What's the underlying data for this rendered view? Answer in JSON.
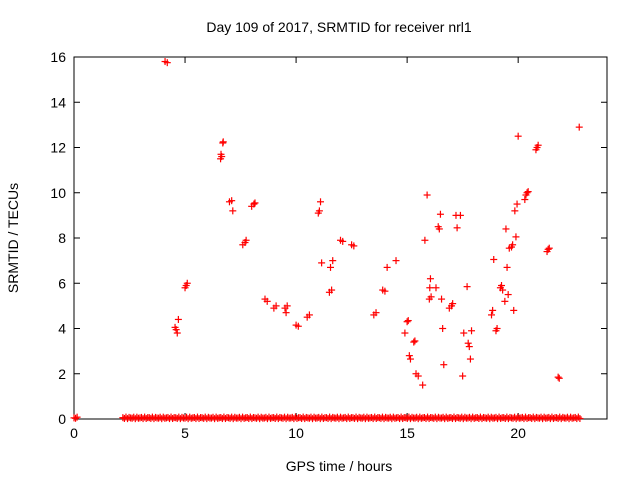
{
  "chart_data": {
    "type": "scatter",
    "title": "Day 109 of 2017, SRMTID for receiver nrl1",
    "xlabel": "GPS time / hours",
    "ylabel": "SRMTID / TECUs",
    "xlim": [
      0,
      24
    ],
    "ylim": [
      0,
      16
    ],
    "xticks": [
      0,
      5,
      10,
      15,
      20
    ],
    "xtick_labels": [
      "0",
      "5",
      "10",
      "15",
      "20"
    ],
    "yticks": [
      0,
      2,
      4,
      6,
      8,
      10,
      12,
      14,
      16
    ],
    "ytick_labels": [
      "0",
      "2",
      "4",
      "6",
      "8",
      "10",
      "12",
      "14",
      "16"
    ],
    "marker": "+",
    "color": "#ff0000",
    "baseline": {
      "y": 0.05,
      "segments": [
        [
          0,
          0.15
        ],
        [
          2.2,
          22.8
        ]
      ]
    },
    "series": [
      {
        "name": "SRMTID",
        "points": [
          [
            4.1,
            15.8
          ],
          [
            4.2,
            15.75
          ],
          [
            4.55,
            4.05
          ],
          [
            4.6,
            3.95
          ],
          [
            4.65,
            3.8
          ],
          [
            4.7,
            4.4
          ],
          [
            5.0,
            5.8
          ],
          [
            5.05,
            5.9
          ],
          [
            5.1,
            6.0
          ],
          [
            6.6,
            11.5
          ],
          [
            6.62,
            11.7
          ],
          [
            6.65,
            11.6
          ],
          [
            6.7,
            12.2
          ],
          [
            6.72,
            12.25
          ],
          [
            7.0,
            9.6
          ],
          [
            7.1,
            9.65
          ],
          [
            7.15,
            9.2
          ],
          [
            7.6,
            7.7
          ],
          [
            7.7,
            7.8
          ],
          [
            7.75,
            7.9
          ],
          [
            8.0,
            9.4
          ],
          [
            8.1,
            9.5
          ],
          [
            8.15,
            9.55
          ],
          [
            8.6,
            5.3
          ],
          [
            8.7,
            5.2
          ],
          [
            9.0,
            4.9
          ],
          [
            9.1,
            5.0
          ],
          [
            9.5,
            4.9
          ],
          [
            9.6,
            5.0
          ],
          [
            9.55,
            4.7
          ],
          [
            10.0,
            4.15
          ],
          [
            10.1,
            4.1
          ],
          [
            10.5,
            4.5
          ],
          [
            10.6,
            4.6
          ],
          [
            11.0,
            9.1
          ],
          [
            11.05,
            9.2
          ],
          [
            11.1,
            9.6
          ],
          [
            11.15,
            6.9
          ],
          [
            11.5,
            5.6
          ],
          [
            11.6,
            5.7
          ],
          [
            11.55,
            6.7
          ],
          [
            11.65,
            7.0
          ],
          [
            12.0,
            7.9
          ],
          [
            12.1,
            7.85
          ],
          [
            12.5,
            7.7
          ],
          [
            12.6,
            7.65
          ],
          [
            13.5,
            4.6
          ],
          [
            13.6,
            4.7
          ],
          [
            13.9,
            5.7
          ],
          [
            14.0,
            5.65
          ],
          [
            14.1,
            6.7
          ],
          [
            14.5,
            7.0
          ],
          [
            14.9,
            3.8
          ],
          [
            15.0,
            4.3
          ],
          [
            15.05,
            4.35
          ],
          [
            15.1,
            2.8
          ],
          [
            15.15,
            2.65
          ],
          [
            15.3,
            3.4
          ],
          [
            15.35,
            3.45
          ],
          [
            15.4,
            2.0
          ],
          [
            15.5,
            1.9
          ],
          [
            15.7,
            1.5
          ],
          [
            15.8,
            7.9
          ],
          [
            15.9,
            9.9
          ],
          [
            16.0,
            5.3
          ],
          [
            16.02,
            5.8
          ],
          [
            16.05,
            6.2
          ],
          [
            16.08,
            5.4
          ],
          [
            16.3,
            5.8
          ],
          [
            16.4,
            8.5
          ],
          [
            16.45,
            8.4
          ],
          [
            16.5,
            9.05
          ],
          [
            16.55,
            5.3
          ],
          [
            16.6,
            4.0
          ],
          [
            16.65,
            2.4
          ],
          [
            16.9,
            4.9
          ],
          [
            17.0,
            5.0
          ],
          [
            17.05,
            5.1
          ],
          [
            17.2,
            9.0
          ],
          [
            17.25,
            8.45
          ],
          [
            17.4,
            9.0
          ],
          [
            17.5,
            1.9
          ],
          [
            17.55,
            3.8
          ],
          [
            17.7,
            5.85
          ],
          [
            17.75,
            3.35
          ],
          [
            17.8,
            3.2
          ],
          [
            17.85,
            2.65
          ],
          [
            17.9,
            3.9
          ],
          [
            18.8,
            4.6
          ],
          [
            18.85,
            4.8
          ],
          [
            18.9,
            7.05
          ],
          [
            19.0,
            3.9
          ],
          [
            19.05,
            4.0
          ],
          [
            19.2,
            5.8
          ],
          [
            19.25,
            5.9
          ],
          [
            19.3,
            5.7
          ],
          [
            19.4,
            5.2
          ],
          [
            19.5,
            6.7
          ],
          [
            19.45,
            8.4
          ],
          [
            19.55,
            5.5
          ],
          [
            19.6,
            7.55
          ],
          [
            19.7,
            7.6
          ],
          [
            19.75,
            7.7
          ],
          [
            19.8,
            4.8
          ],
          [
            19.85,
            9.2
          ],
          [
            19.9,
            8.05
          ],
          [
            19.95,
            9.5
          ],
          [
            20.0,
            12.5
          ],
          [
            20.3,
            9.7
          ],
          [
            20.35,
            9.9
          ],
          [
            20.4,
            10.0
          ],
          [
            20.45,
            10.05
          ],
          [
            20.8,
            11.9
          ],
          [
            20.85,
            12.0
          ],
          [
            20.9,
            12.1
          ],
          [
            21.3,
            7.4
          ],
          [
            21.35,
            7.5
          ],
          [
            21.4,
            7.55
          ],
          [
            21.8,
            1.85
          ],
          [
            21.85,
            1.8
          ],
          [
            22.75,
            12.9
          ]
        ]
      }
    ]
  }
}
